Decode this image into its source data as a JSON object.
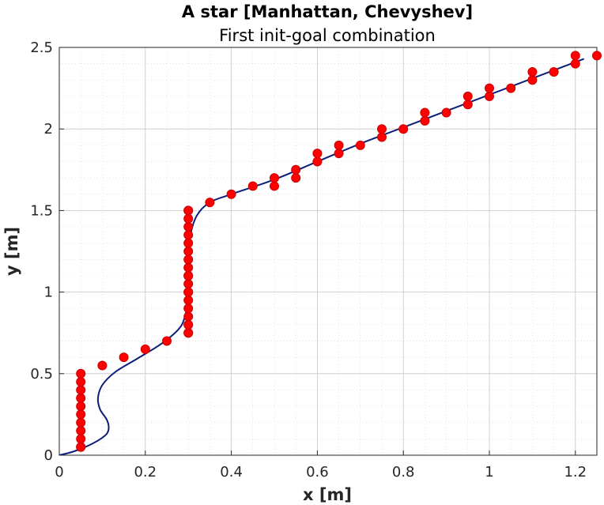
{
  "chart_data": {
    "type": "scatter",
    "title": "A star [Manhattan, Chevyshev]",
    "subtitle": "First init-goal combination",
    "xlabel": "x [m]",
    "ylabel": "y [m]",
    "xlim": [
      0,
      1.25
    ],
    "ylim": [
      0,
      2.5
    ],
    "xticks": [
      "0",
      "0.2",
      "0.4",
      "0.6",
      "0.8",
      "1",
      "1.2"
    ],
    "yticks": [
      "0",
      "0.5",
      "1",
      "1.5",
      "2",
      "2.5"
    ],
    "grid": true,
    "minor_grid": true,
    "colors": {
      "path": "#0b1e7a",
      "points": "#ff0000",
      "point_edge": "#cc0000",
      "grid": "#d9d9d9"
    },
    "series": [
      {
        "kind": "line",
        "x": [
          0,
          0.03,
          0.06,
          0.09,
          0.11,
          0.115,
          0.11,
          0.095,
          0.09,
          0.1,
          0.13,
          0.18,
          0.23,
          0.265,
          0.285,
          0.295,
          0.3,
          0.3,
          0.3,
          0.305,
          0.32,
          0.35,
          0.4,
          0.5,
          0.6,
          0.7,
          0.8,
          0.9,
          1.0,
          1.1,
          1.2,
          1.22
        ],
        "y": [
          0,
          0.02,
          0.05,
          0.09,
          0.13,
          0.17,
          0.22,
          0.28,
          0.35,
          0.43,
          0.51,
          0.59,
          0.67,
          0.74,
          0.8,
          0.88,
          0.95,
          1.05,
          1.2,
          1.35,
          1.47,
          1.55,
          1.6,
          1.69,
          1.8,
          1.91,
          2.01,
          2.11,
          2.21,
          2.31,
          2.41,
          2.43
        ]
      },
      {
        "kind": "scatter",
        "x": [
          0.05,
          0.05,
          0.05,
          0.05,
          0.05,
          0.05,
          0.05,
          0.05,
          0.05,
          0.05,
          0.05,
          0.1,
          0.15,
          0.2,
          0.25,
          0.3,
          0.3,
          0.3,
          0.3,
          0.3,
          0.3,
          0.3,
          0.3,
          0.3,
          0.3,
          0.3,
          0.3,
          0.3,
          0.3,
          0.3,
          0.3,
          0.3,
          0.3,
          0.3,
          0.3,
          0.3,
          0.35,
          0.4,
          0.45,
          0.5,
          0.5,
          0.55,
          0.55,
          0.6,
          0.6,
          0.65,
          0.65,
          0.7,
          0.75,
          0.75,
          0.8,
          0.85,
          0.85,
          0.9,
          0.95,
          0.95,
          1.0,
          1.0,
          1.05,
          1.1,
          1.1,
          1.15,
          1.2,
          1.2,
          1.25
        ],
        "y": [
          0.05,
          0.1,
          0.15,
          0.2,
          0.25,
          0.3,
          0.35,
          0.4,
          0.45,
          0.5,
          0.05,
          0.55,
          0.6,
          0.65,
          0.7,
          0.75,
          0.8,
          0.85,
          0.9,
          0.95,
          1.0,
          1.05,
          1.1,
          1.15,
          1.2,
          1.25,
          1.3,
          1.35,
          1.4,
          1.45,
          1.5,
          0.75,
          0.8,
          1.0,
          1.1,
          1.5,
          1.55,
          1.6,
          1.65,
          1.65,
          1.7,
          1.7,
          1.75,
          1.8,
          1.85,
          1.85,
          1.9,
          1.9,
          1.95,
          2.0,
          2.0,
          2.05,
          2.1,
          2.1,
          2.15,
          2.2,
          2.2,
          2.25,
          2.25,
          2.3,
          2.35,
          2.35,
          2.4,
          2.45,
          2.45
        ]
      }
    ]
  }
}
